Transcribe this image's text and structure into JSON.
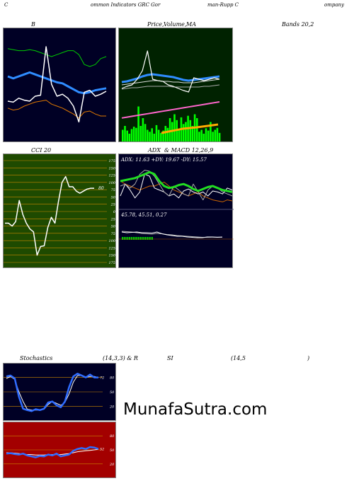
{
  "header": {
    "left_c": "C",
    "part1": "ommon  Indicators GRC Gor",
    "part2": "man-Rupp C",
    "part3": "ompany"
  },
  "panel_titles": {
    "bands": "B",
    "bands_right": "Bands 20,2",
    "price_a": "Price,",
    "price_b": "Volume,",
    "price_c": "MA",
    "cci": "CCI 20",
    "adx_a": "ADX",
    "adx_b": "& MACD 12,26,9",
    "stoch_a": "Stochastics",
    "stoch_b": "(14,3,3) & R",
    "stoch_c": "SI",
    "stoch_d": "(14,5",
    "stoch_e": ")"
  },
  "adx_text": "ADX: 11.63 +DY: 19.67 -DY: 15.57",
  "macd_text": "45.78,  45.51,  0.27",
  "cci_value": "80",
  "stoch_value": "72",
  "rsi_value": "52",
  "watermark": "MunafaSutra.com",
  "colors": {
    "dark_bg": "#000025",
    "price_bg": "#002200",
    "cci_bg": "#1e4a00",
    "rsi_bg": "#a30000",
    "volume": "#00ff00",
    "ma_blue": "#2f8cff",
    "upper_band": "#00cc00",
    "lower_band": "#dd7700"
  },
  "chart_data": [
    {
      "type": "line",
      "panel": "bollinger",
      "series": [
        {
          "values": [
            35,
            34,
            38,
            36,
            35,
            40,
            41,
            90,
            52,
            40,
            42,
            38,
            30,
            14,
            44,
            46,
            40,
            42,
            45
          ]
        },
        {
          "values": [
            60,
            58,
            60,
            62,
            64,
            62,
            60,
            58,
            56,
            54,
            53,
            50,
            47,
            44,
            43,
            44,
            46,
            47,
            48
          ]
        },
        {
          "values": [
            88,
            87,
            86,
            86,
            87,
            86,
            84,
            82,
            80,
            82,
            84,
            86,
            86,
            82,
            72,
            70,
            72,
            78,
            80
          ]
        },
        {
          "values": [
            28,
            26,
            27,
            30,
            32,
            34,
            35,
            36,
            32,
            30,
            28,
            25,
            22,
            18,
            24,
            25,
            22,
            20,
            20
          ]
        }
      ]
    },
    {
      "type": "line",
      "panel": "price-volume-ma",
      "series": [
        {
          "values": [
            35,
            38,
            40,
            48,
            60,
            88,
            48,
            46,
            45,
            40,
            38,
            35,
            32,
            30,
            50,
            48,
            46,
            48,
            50,
            48
          ]
        },
        {
          "values": [
            44,
            45,
            47,
            49,
            52,
            54,
            55,
            54,
            53,
            52,
            51,
            49,
            47,
            46,
            47,
            48,
            49,
            50,
            51,
            52
          ]
        },
        {
          "values": [
            40,
            41,
            42,
            43,
            44,
            45,
            46,
            46,
            45,
            45,
            44,
            44,
            43,
            43,
            43,
            44,
            45,
            46,
            47,
            48
          ]
        },
        {
          "values": [
            34,
            35,
            36,
            36,
            37,
            38,
            38,
            38,
            38,
            38,
            37,
            37,
            37,
            37,
            37,
            37,
            38,
            38,
            39,
            40
          ]
        },
        {
          "values": [
            2,
            4,
            6,
            8,
            10,
            12,
            14,
            16,
            18,
            20,
            22,
            24,
            26,
            28,
            30,
            32,
            34,
            36,
            38,
            40
          ]
        }
      ],
      "volume": [
        30,
        40,
        28,
        20,
        32,
        38,
        35,
        90,
        40,
        60,
        45,
        30,
        25,
        34,
        20,
        42,
        30,
        22,
        28,
        40,
        35,
        60,
        50,
        70,
        55,
        30,
        62,
        45,
        50,
        66,
        55,
        40,
        70,
        60,
        25,
        30,
        20,
        34,
        28,
        50,
        25,
        30,
        35,
        22
      ]
    },
    {
      "type": "line",
      "panel": "cci",
      "ylim": [
        -175,
        175
      ],
      "ticks": [
        175,
        150,
        125,
        100,
        75,
        50,
        25,
        0,
        -25,
        -50,
        -75,
        -100,
        -125,
        -150,
        -175
      ],
      "tick_labels": [
        "175",
        "150",
        "125",
        "100",
        "75",
        "50",
        "25",
        "0",
        "25",
        "50",
        "75",
        "100",
        "125",
        "150",
        "175"
      ],
      "values": [
        -40,
        -40,
        -50,
        -35,
        38,
        -10,
        -40,
        -60,
        -70,
        -150,
        -120,
        -118,
        -55,
        -20,
        -40,
        35,
        100,
        120,
        85,
        85,
        70,
        63,
        70,
        77,
        80,
        80
      ]
    },
    {
      "type": "line",
      "panel": "adx",
      "series": [
        {
          "values": [
            55,
            56,
            57,
            58,
            60,
            62,
            64,
            62,
            55,
            50,
            48,
            49,
            51,
            52,
            50,
            47,
            45,
            47,
            49,
            50,
            48,
            46,
            45,
            44
          ]
        },
        {
          "values": [
            50,
            52,
            48,
            52,
            62,
            66,
            65,
            60,
            52,
            44,
            40,
            50,
            46,
            42,
            40,
            52,
            44,
            36,
            46,
            50,
            48,
            44,
            42,
            40
          ]
        },
        {
          "values": [
            40,
            52,
            46,
            38,
            44,
            62,
            60,
            48,
            46,
            44,
            40,
            42,
            38,
            45,
            47,
            44,
            42,
            44,
            40,
            45,
            44,
            42,
            48,
            46
          ]
        },
        {
          "values": [
            55,
            52,
            50,
            48,
            46,
            48,
            50,
            50,
            52,
            54,
            50,
            46,
            44,
            42,
            40,
            42,
            44,
            40,
            38,
            36,
            35,
            34,
            36,
            35
          ]
        }
      ]
    },
    {
      "type": "line",
      "panel": "macd",
      "series": [
        {
          "values": [
            60,
            58,
            59,
            60,
            58,
            58,
            57,
            60,
            55,
            52,
            50,
            48,
            48,
            46,
            45,
            44,
            44,
            46,
            46,
            45,
            45.8
          ]
        },
        {
          "values": [
            62,
            61,
            60,
            58,
            56,
            55,
            54,
            56,
            55,
            53,
            52,
            50,
            49,
            48,
            47,
            46,
            45,
            45,
            45.5,
            45.5,
            45.5
          ]
        }
      ]
    },
    {
      "type": "line",
      "panel": "stochastics",
      "ylim": [
        0,
        100
      ],
      "ticks": [
        80,
        50,
        20
      ],
      "series": [
        {
          "values": [
            82,
            84,
            78,
            40,
            15,
            12,
            10,
            14,
            12,
            15,
            28,
            30,
            22,
            18,
            30,
            60,
            82,
            88,
            84,
            80,
            86,
            80,
            80
          ]
        },
        {
          "values": [
            78,
            82,
            76,
            50,
            30,
            14,
            12,
            12,
            12,
            14,
            24,
            30,
            26,
            22,
            28,
            46,
            70,
            84,
            84,
            80,
            82,
            82,
            80
          ]
        }
      ]
    },
    {
      "type": "line",
      "panel": "rsi",
      "ylim": [
        0,
        100
      ],
      "ticks": [
        80,
        50,
        20
      ],
      "series": [
        {
          "values": [
            42,
            43,
            41,
            40,
            42,
            38,
            36,
            34,
            37,
            36,
            40,
            38,
            42,
            36,
            38,
            40,
            48,
            52,
            54,
            52,
            56,
            55,
            52
          ]
        },
        {
          "values": [
            44,
            44,
            43,
            42,
            41,
            40,
            40,
            39,
            39,
            39,
            40,
            40,
            40,
            40,
            41,
            42,
            44,
            46,
            47,
            48,
            49,
            50,
            51
          ]
        }
      ]
    }
  ]
}
